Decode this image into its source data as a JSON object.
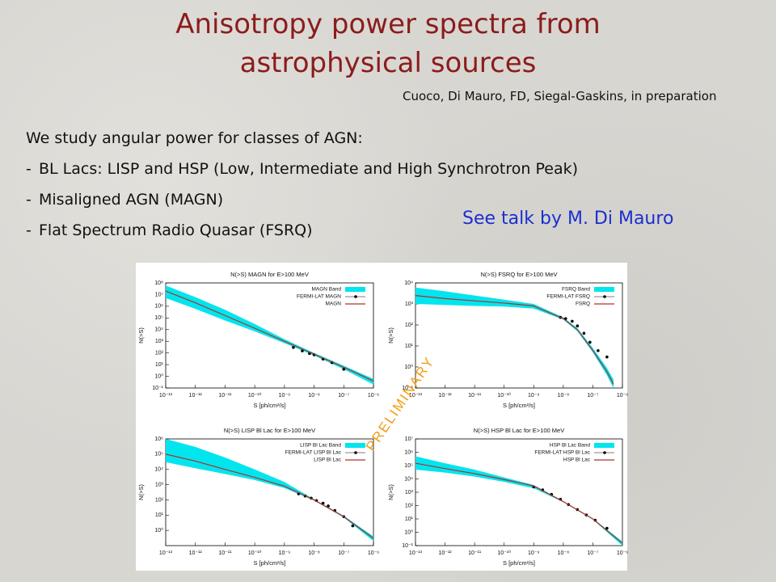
{
  "slide": {
    "title": [
      "Anisotropy power spectra from",
      "astrophysical sources"
    ],
    "citation": "Cuoco, Di Mauro, FD, Siegal-Gaskins, in preparation",
    "intro": "We study angular power for classes of AGN:",
    "bullets": [
      {
        "marker": "-",
        "text": "BL Lacs: LISP and HSP (Low, Intermediate and High Synchrotron Peak)"
      },
      {
        "marker": "-",
        "text": "Misaligned AGN (MAGN)"
      },
      {
        "marker": "-",
        "text": "Flat Spectrum Radio Quasar (FSRQ)"
      }
    ],
    "talk_note": "See talk by M. Di Mauro",
    "watermark": "PRELIMINARY"
  },
  "chart_data": [
    {
      "type": "line",
      "title": "N(>S) MAGN for E>100 MeV",
      "xlabel": "S [ph/cm²/s]",
      "ylabel": "N(>S)",
      "log_scale": true,
      "xlim": [
        1e-13,
        1e-06
      ],
      "ylim": [
        0.1,
        100000000.0
      ],
      "xticks": [
        {
          "value": 1e-13,
          "label": "10⁻¹³"
        },
        {
          "value": 1e-12,
          "label": "10⁻¹²"
        },
        {
          "value": 1e-11,
          "label": "10⁻¹¹"
        },
        {
          "value": 1e-10,
          "label": "10⁻¹⁰"
        },
        {
          "value": 1e-09,
          "label": "10⁻⁹"
        },
        {
          "value": 1e-08,
          "label": "10⁻⁸"
        },
        {
          "value": 1e-07,
          "label": "10⁻⁷"
        },
        {
          "value": 1e-06,
          "label": "10⁻⁶"
        }
      ],
      "yticks": [
        {
          "value": 0.1,
          "label": "10⁻¹"
        },
        {
          "value": 1,
          "label": "10⁰"
        },
        {
          "value": 10,
          "label": "10¹"
        },
        {
          "value": 100,
          "label": "10²"
        },
        {
          "value": 1000,
          "label": "10³"
        },
        {
          "value": 10000,
          "label": "10⁴"
        },
        {
          "value": 100000,
          "label": "10⁵"
        },
        {
          "value": 1000000,
          "label": "10⁶"
        },
        {
          "value": 10000000,
          "label": "10⁷"
        },
        {
          "value": 100000000,
          "label": "10⁸"
        }
      ],
      "series": [
        {
          "name": "MAGN Band",
          "style": "band",
          "color": "#00e5ee",
          "x": [
            1e-13,
            1e-12,
            1e-11,
            1e-10,
            1e-09,
            1e-08,
            1e-07,
            1e-06
          ],
          "lower": [
            5000000.0,
            600000.0,
            60000.0,
            7000.0,
            700,
            60,
            4,
            0.2
          ],
          "upper": [
            60000000.0,
            6000000.0,
            500000.0,
            30000.0,
            1500,
            100,
            8,
            0.6
          ]
        },
        {
          "name": "FERMI-LAT MAGN",
          "style": "points",
          "color": "#000000",
          "x": [
            2e-09,
            4e-09,
            7e-09,
            1e-08,
            2e-08,
            4e-08,
            1e-07
          ],
          "values": [
            300,
            150,
            90,
            70,
            30,
            15,
            4
          ]
        },
        {
          "name": "MAGN",
          "style": "line",
          "color": "#b0302a",
          "x": [
            1e-13,
            1e-12,
            1e-11,
            1e-10,
            1e-09,
            1e-08,
            1e-07,
            1e-06
          ],
          "values": [
            20000000.0,
            2000000.0,
            160000.0,
            13000.0,
            1000,
            80,
            6,
            0.4
          ]
        }
      ]
    },
    {
      "type": "line",
      "title": "N(>S) FSRQ for E>100 MeV",
      "xlabel": "S [ph/cm²/s]",
      "ylabel": "N(>S)",
      "log_scale": true,
      "xlim": [
        1e-13,
        1e-06
      ],
      "ylim": [
        0.1,
        10000
      ],
      "xticks": [
        {
          "value": 1e-13,
          "label": "10⁻¹³"
        },
        {
          "value": 1e-12,
          "label": "10⁻¹²"
        },
        {
          "value": 1e-11,
          "label": "10⁻¹¹"
        },
        {
          "value": 1e-10,
          "label": "10⁻¹⁰"
        },
        {
          "value": 1e-09,
          "label": "10⁻⁹"
        },
        {
          "value": 1e-08,
          "label": "10⁻⁸"
        },
        {
          "value": 1e-07,
          "label": "10⁻⁷"
        },
        {
          "value": 1e-06,
          "label": "10⁻⁶"
        }
      ],
      "yticks": [
        {
          "value": 0.1,
          "label": "10⁻¹"
        },
        {
          "value": 1,
          "label": "10⁰"
        },
        {
          "value": 10,
          "label": "10¹"
        },
        {
          "value": 100,
          "label": "10²"
        },
        {
          "value": 1000,
          "label": "10³"
        },
        {
          "value": 10000,
          "label": "10⁴"
        }
      ],
      "series": [
        {
          "name": "FSRQ Band",
          "style": "band",
          "color": "#00e5ee",
          "x": [
            1e-13,
            1e-12,
            1e-11,
            1e-10,
            1e-09,
            1e-08,
            3e-08,
            1e-07,
            3e-07,
            5e-07
          ],
          "lower": [
            1000,
            900,
            800,
            750,
            600,
            180,
            50,
            5,
            0.4,
            0.1
          ],
          "upper": [
            6000,
            4000,
            2500,
            1600,
            1000,
            230,
            70,
            8,
            0.9,
            0.25
          ]
        },
        {
          "name": "FERMI-LAT FSRQ",
          "style": "points",
          "color": "#000000",
          "x": [
            8e-09,
            1.2e-08,
            2e-08,
            3e-08,
            5e-08,
            8e-08,
            1.5e-07,
            3e-07
          ],
          "values": [
            230,
            200,
            150,
            90,
            40,
            15,
            6,
            3
          ]
        },
        {
          "name": "FSRQ",
          "style": "line",
          "color": "#b0302a",
          "x": [
            1e-13,
            1e-12,
            1e-11,
            1e-10,
            1e-09,
            1e-08,
            3e-08,
            1e-07,
            3e-07,
            5e-07
          ],
          "values": [
            2500,
            1800,
            1400,
            1100,
            800,
            200,
            60,
            6,
            0.6,
            0.15
          ]
        }
      ]
    },
    {
      "type": "line",
      "title": "N(>S) LISP Bl Lac for E>100 MeV",
      "xlabel": "S [ph/cm²/s]",
      "ylabel": "N(>S)",
      "log_scale": true,
      "xlim": [
        1e-13,
        1e-06
      ],
      "ylim": [
        0.1,
        1000000
      ],
      "xticks": [
        {
          "value": 1e-13,
          "label": "10⁻¹³"
        },
        {
          "value": 1e-12,
          "label": "10⁻¹²"
        },
        {
          "value": 1e-11,
          "label": "10⁻¹¹"
        },
        {
          "value": 1e-10,
          "label": "10⁻¹⁰"
        },
        {
          "value": 1e-09,
          "label": "10⁻⁹"
        },
        {
          "value": 1e-08,
          "label": "10⁻⁸"
        },
        {
          "value": 1e-07,
          "label": "10⁻⁷"
        },
        {
          "value": 1e-06,
          "label": "10⁻⁶"
        }
      ],
      "yticks": [
        {
          "value": 1,
          "label": "10⁰"
        },
        {
          "value": 10,
          "label": "10¹"
        },
        {
          "value": 100,
          "label": "10²"
        },
        {
          "value": 1000,
          "label": "10³"
        },
        {
          "value": 10000,
          "label": "10⁴"
        },
        {
          "value": 100000,
          "label": "10⁵"
        },
        {
          "value": 1000000,
          "label": "10⁶"
        }
      ],
      "series": [
        {
          "name": "LISP Bl Lac Band",
          "style": "band",
          "color": "#00e5ee",
          "x": [
            1e-13,
            1e-12,
            1e-11,
            1e-10,
            1e-09,
            1e-08,
            1e-07,
            1e-06
          ],
          "lower": [
            30000.0,
            12000.0,
            5000.0,
            2000.0,
            600,
            90,
            7,
            0.2
          ],
          "upper": [
            1000000.0,
            300000.0,
            60000.0,
            10000.0,
            1500,
            110,
            9,
            0.4
          ]
        },
        {
          "name": "FERMI-LAT LISP Bl Lac",
          "style": "points",
          "color": "#000000",
          "x": [
            3e-09,
            5e-09,
            8e-09,
            1.2e-08,
            2e-08,
            3e-08,
            5e-08,
            1e-07,
            2e-07
          ],
          "values": [
            250,
            180,
            130,
            90,
            60,
            40,
            20,
            8,
            2
          ]
        },
        {
          "name": "LISP Bl Lac",
          "style": "line",
          "color": "#b0302a",
          "x": [
            1e-13,
            1e-12,
            1e-11,
            1e-10,
            1e-09,
            1e-08,
            1e-07,
            1e-06
          ],
          "values": [
            100000.0,
            35000.0,
            10000.0,
            3000.0,
            800,
            100,
            8,
            0.3
          ]
        }
      ]
    },
    {
      "type": "line",
      "title": "N(>S) HSP Bl Lac for E>100 MeV",
      "xlabel": "S [ph/cm²/s]",
      "ylabel": "N(>S)",
      "log_scale": true,
      "xlim": [
        1e-13,
        1e-06
      ],
      "ylim": [
        0.1,
        10000000
      ],
      "xticks": [
        {
          "value": 1e-13,
          "label": "10⁻¹³"
        },
        {
          "value": 1e-12,
          "label": "10⁻¹²"
        },
        {
          "value": 1e-11,
          "label": "10⁻¹¹"
        },
        {
          "value": 1e-10,
          "label": "10⁻¹⁰"
        },
        {
          "value": 1e-09,
          "label": "10⁻⁹"
        },
        {
          "value": 1e-08,
          "label": "10⁻⁸"
        },
        {
          "value": 1e-07,
          "label": "10⁻⁷"
        },
        {
          "value": 1e-06,
          "label": "10⁻⁶"
        }
      ],
      "yticks": [
        {
          "value": 0.1,
          "label": "10⁻¹"
        },
        {
          "value": 1,
          "label": "10⁰"
        },
        {
          "value": 10,
          "label": "10¹"
        },
        {
          "value": 100,
          "label": "10²"
        },
        {
          "value": 1000,
          "label": "10³"
        },
        {
          "value": 10000,
          "label": "10⁴"
        },
        {
          "value": 100000,
          "label": "10⁵"
        },
        {
          "value": 1000000,
          "label": "10⁶"
        },
        {
          "value": 10000000,
          "label": "10⁷"
        }
      ],
      "series": [
        {
          "name": "HSP Bl Lac Band",
          "style": "band",
          "color": "#00e5ee",
          "x": [
            1e-13,
            1e-12,
            1e-11,
            1e-10,
            1e-09,
            1e-08,
            1e-07,
            1e-06
          ],
          "lower": [
            50000.0,
            30000.0,
            15000.0,
            6000.0,
            2000.0,
            180,
            9,
            0.1
          ],
          "upper": [
            500000.0,
            150000.0,
            50000.0,
            13000.0,
            3500.0,
            220,
            11,
            0.2
          ]
        },
        {
          "name": "FERMI-LAT HSP Bl Lac",
          "style": "points",
          "color": "#000000",
          "x": [
            1e-09,
            2e-09,
            4e-09,
            8e-09,
            1.5e-08,
            3e-08,
            6e-08,
            1.2e-07,
            3e-07
          ],
          "values": [
            2500,
            1500,
            700,
            300,
            120,
            50,
            20,
            8,
            2
          ]
        },
        {
          "name": "HSP Bl Lac",
          "style": "line",
          "color": "#b0302a",
          "x": [
            1e-13,
            1e-12,
            1e-11,
            1e-10,
            1e-09,
            1e-08,
            1e-07,
            1e-06
          ],
          "values": [
            150000.0,
            60000.0,
            25000.0,
            9000.0,
            3000.0,
            200,
            10,
            0.15
          ]
        }
      ]
    }
  ]
}
